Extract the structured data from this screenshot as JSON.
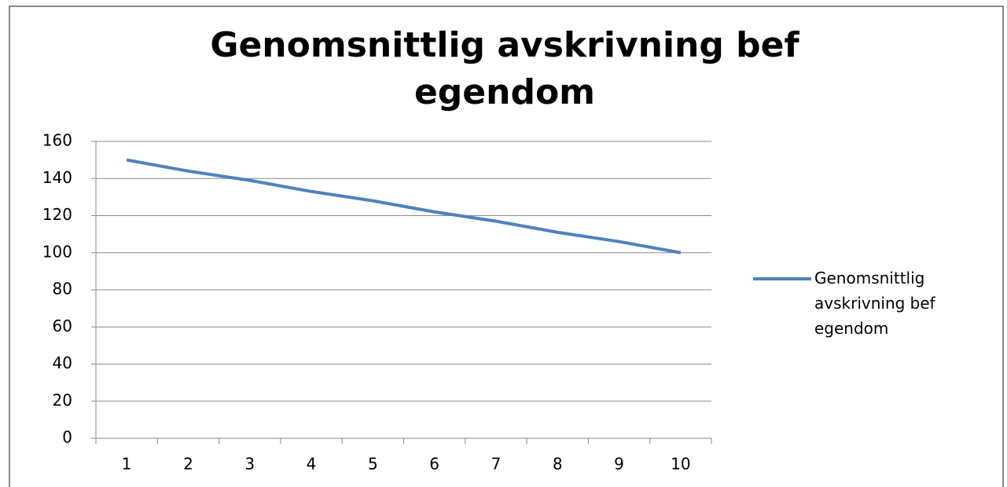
{
  "chart_data": {
    "type": "line",
    "title": "Genomsnittlig avskrivning bef egendom",
    "categories": [
      "1",
      "2",
      "3",
      "4",
      "5",
      "6",
      "7",
      "8",
      "9",
      "10"
    ],
    "series": [
      {
        "name": "Genomsnittlig avskrivning bef egendom",
        "color": "#4f81bd",
        "values": [
          150,
          144,
          139,
          133,
          128,
          122,
          117,
          111,
          106,
          100
        ]
      }
    ],
    "ylim": [
      0,
      160
    ],
    "yticks": [
      0,
      20,
      40,
      60,
      80,
      100,
      120,
      140,
      160
    ],
    "grid": true,
    "legend": "right"
  }
}
